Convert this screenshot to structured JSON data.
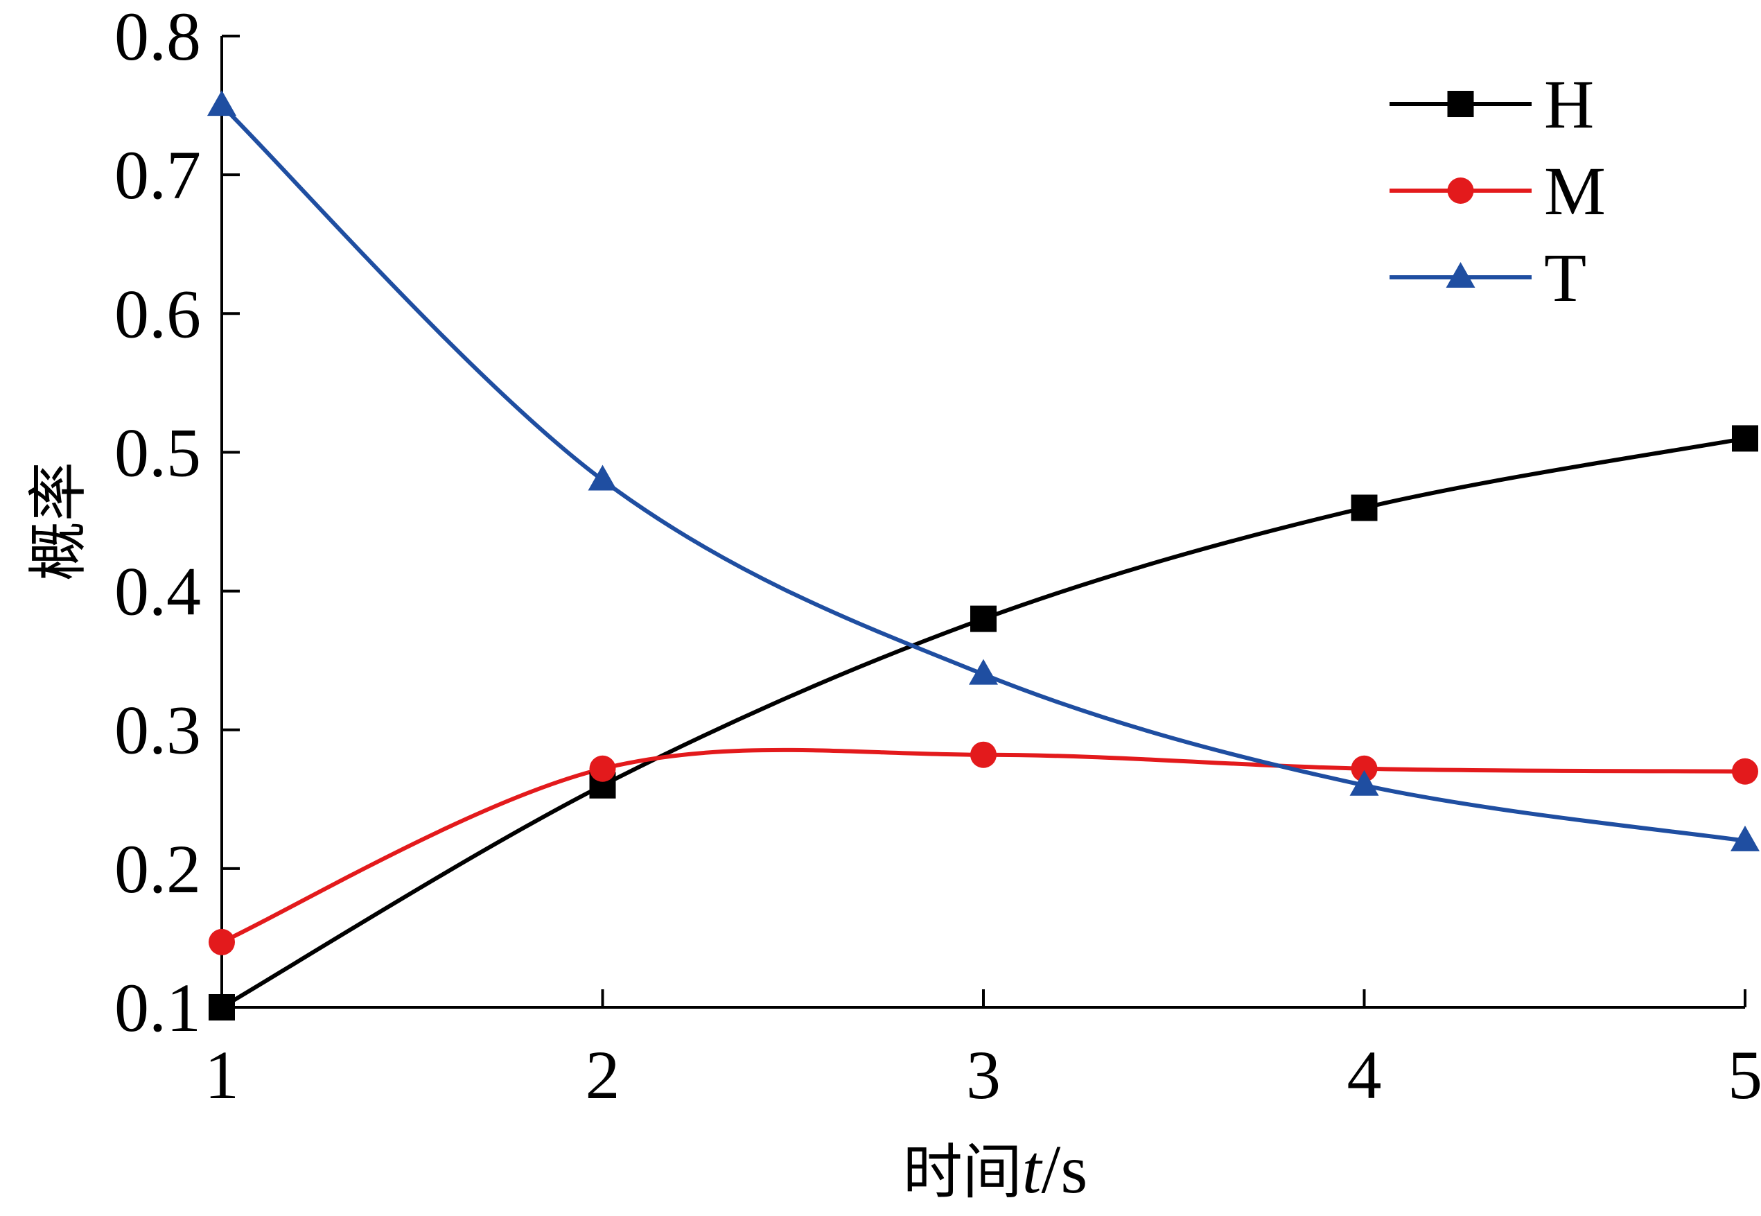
{
  "chart_data": {
    "type": "line",
    "x": [
      1,
      2,
      3,
      4,
      5
    ],
    "series": [
      {
        "name": "H",
        "values": [
          0.1,
          0.26,
          0.38,
          0.46,
          0.51
        ],
        "color": "#000000",
        "marker": "square"
      },
      {
        "name": "M",
        "values": [
          0.147,
          0.272,
          0.282,
          0.272,
          0.27
        ],
        "color": "#e31a1c",
        "marker": "circle"
      },
      {
        "name": "T",
        "values": [
          0.75,
          0.48,
          0.34,
          0.26,
          0.22
        ],
        "color": "#1f4ea1",
        "marker": "triangle"
      }
    ],
    "xlim": [
      1,
      5
    ],
    "ylim": [
      0.1,
      0.8
    ],
    "xticks": [
      "1",
      "2",
      "3",
      "4",
      "5"
    ],
    "yticks": [
      "0.1",
      "0.2",
      "0.3",
      "0.4",
      "0.5",
      "0.6",
      "0.7",
      "0.8"
    ],
    "title": "",
    "xlabel": {
      "prefix": "时间",
      "var": "t",
      "suffix": "/s"
    },
    "ylabel": "概率",
    "legend_position": "top-right",
    "grid": false,
    "smooth": true
  }
}
